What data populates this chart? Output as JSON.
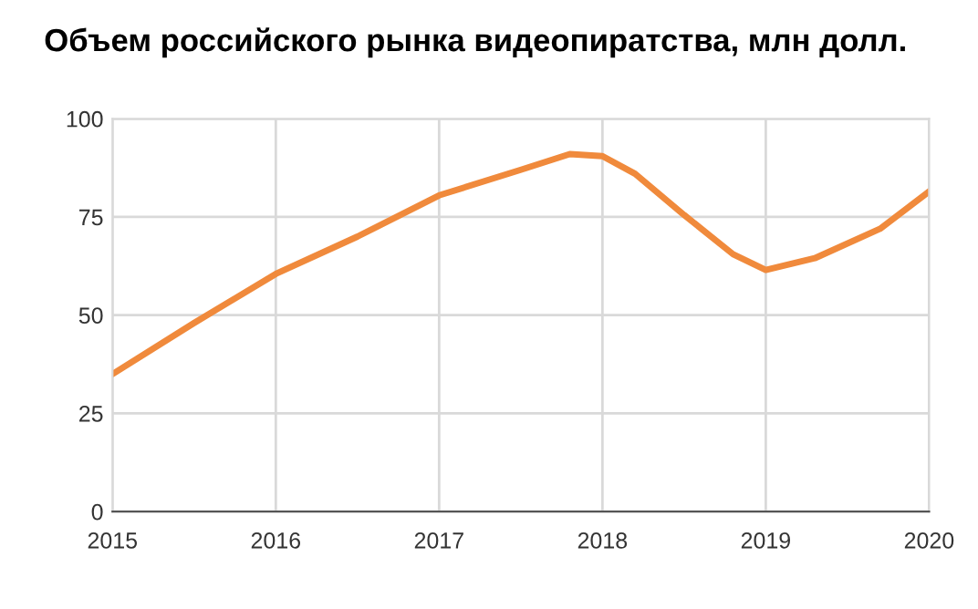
{
  "chart_data": {
    "type": "line",
    "title": "Объем российского рынка видеопиратства, млн долл.",
    "x": [
      2015,
      2015.5,
      2016,
      2016.5,
      2017,
      2017.5,
      2017.8,
      2018,
      2018.2,
      2018.5,
      2018.8,
      2019,
      2019.3,
      2019.7,
      2020
    ],
    "series": [
      {
        "color": "#f08a3c",
        "values": [
          35,
          48,
          60.5,
          70,
          80.5,
          87,
          91,
          90.5,
          86,
          75.5,
          65.5,
          61.5,
          64.5,
          72,
          81.5
        ]
      }
    ],
    "xlim": [
      2015,
      2020
    ],
    "xticks": [
      2015,
      2016,
      2017,
      2018,
      2019,
      2020
    ],
    "ylim": [
      0,
      100
    ],
    "yticks": [
      0,
      25,
      50,
      75,
      100
    ],
    "grid": true,
    "legend": false,
    "marker": "none",
    "line_style": "solid"
  }
}
